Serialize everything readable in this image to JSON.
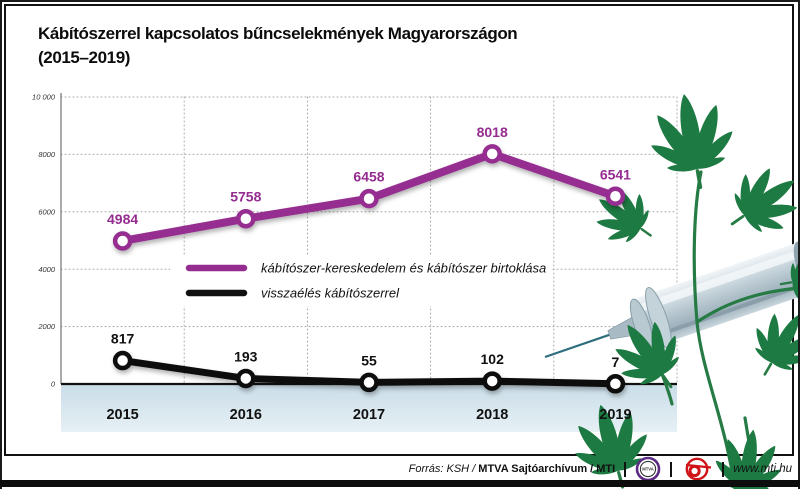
{
  "title": {
    "line1": "Kábítószerrel kapcsolatos bűncselekmények Magyarországon",
    "line2": "(2015–2019)"
  },
  "chart_data": {
    "type": "line",
    "title": "Kábítószerrel kapcsolatos bűncselekmények Magyarországon (2015–2019)",
    "categories": [
      "2015",
      "2016",
      "2017",
      "2018",
      "2019"
    ],
    "series": [
      {
        "name": "kábítószer-kereskedelem és kábítószer birtoklása",
        "color": "#952d90",
        "values": [
          4984,
          5758,
          6458,
          8018,
          6541
        ]
      },
      {
        "name": "visszaélés kábítószerrel",
        "color": "#101010",
        "values": [
          817,
          193,
          55,
          102,
          7
        ]
      }
    ],
    "xlabel": "",
    "ylabel": "",
    "ylim": [
      0,
      10000
    ],
    "yticks": [
      0,
      2000,
      4000,
      6000,
      8000,
      10000
    ],
    "ytick_labels": [
      "0",
      "2000",
      "4000",
      "6000",
      "8000",
      "10 000"
    ],
    "grid": "dotted",
    "legend_position": "center-left"
  },
  "footer": {
    "source_prefix": "Forrás: KSH /",
    "source_bold": "MTVA Sajtóarchívum / MTI",
    "mtva_logo_label": "MTVA",
    "website": "www.mti.hu"
  },
  "decor": {
    "accent_purple": "#952d90",
    "series_black": "#101010",
    "leaf_green": "#1d7a42",
    "stem_green": "#267b45",
    "band_top": "#cadde8",
    "band_bottom": "#e6f0f5",
    "needle_teal": "#2f6e7e",
    "mti_red": "#d01317",
    "mtva_purple": "#5c2b85"
  }
}
